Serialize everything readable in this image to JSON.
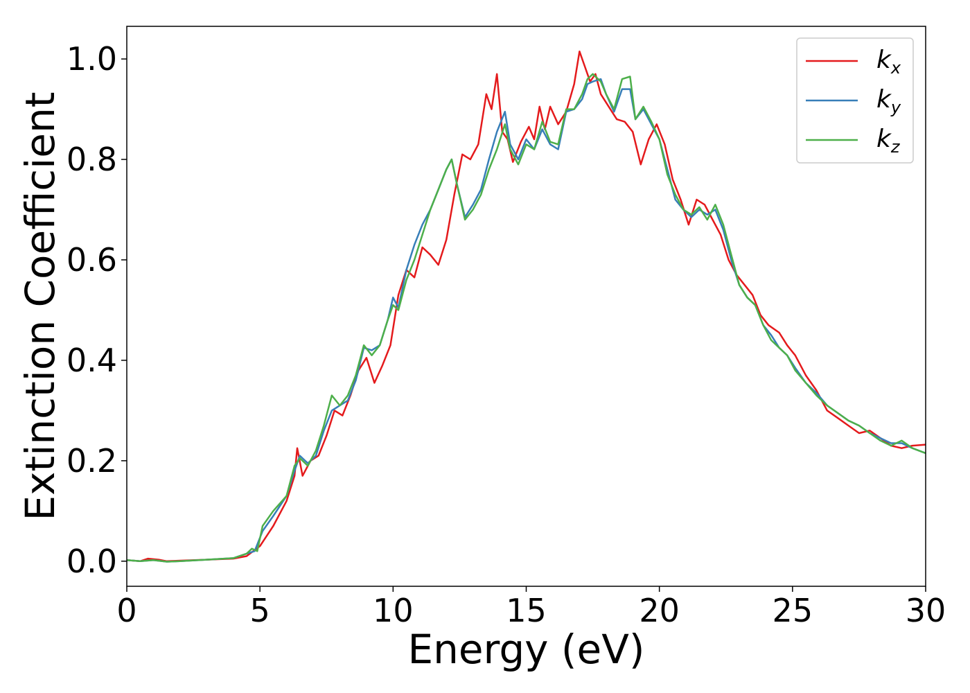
{
  "chart_data": {
    "type": "line",
    "xlabel": "Energy (eV)",
    "ylabel": "Extinction Coefficient",
    "xlim": [
      0,
      30
    ],
    "ylim": [
      -0.05,
      1.065
    ],
    "xticks": [
      "0",
      "5",
      "10",
      "15",
      "20",
      "25",
      "30"
    ],
    "yticks": [
      "0.0",
      "0.2",
      "0.4",
      "0.6",
      "0.8",
      "1.0"
    ],
    "legend_position": "top-right",
    "grid": false,
    "series": [
      {
        "name": "k",
        "subscript": "x",
        "color": "#e41a1c",
        "points": [
          [
            0,
            0.002
          ],
          [
            0.5,
            0.0
          ],
          [
            0.8,
            0.005
          ],
          [
            1.2,
            0.003
          ],
          [
            1.5,
            0.0
          ],
          [
            2,
            0.001
          ],
          [
            3,
            0.003
          ],
          [
            4,
            0.005
          ],
          [
            4.5,
            0.01
          ],
          [
            5,
            0.03
          ],
          [
            5.5,
            0.07
          ],
          [
            6,
            0.12
          ],
          [
            6.3,
            0.17
          ],
          [
            6.4,
            0.225
          ],
          [
            6.6,
            0.17
          ],
          [
            6.9,
            0.2
          ],
          [
            7.2,
            0.21
          ],
          [
            7.5,
            0.25
          ],
          [
            7.8,
            0.3
          ],
          [
            8.1,
            0.29
          ],
          [
            8.4,
            0.33
          ],
          [
            8.7,
            0.38
          ],
          [
            9.0,
            0.405
          ],
          [
            9.3,
            0.355
          ],
          [
            9.6,
            0.39
          ],
          [
            9.9,
            0.43
          ],
          [
            10.2,
            0.53
          ],
          [
            10.5,
            0.58
          ],
          [
            10.8,
            0.565
          ],
          [
            11.1,
            0.625
          ],
          [
            11.4,
            0.61
          ],
          [
            11.7,
            0.59
          ],
          [
            12.0,
            0.64
          ],
          [
            12.3,
            0.73
          ],
          [
            12.6,
            0.81
          ],
          [
            12.9,
            0.8
          ],
          [
            13.2,
            0.83
          ],
          [
            13.5,
            0.93
          ],
          [
            13.7,
            0.9
          ],
          [
            13.9,
            0.97
          ],
          [
            14.1,
            0.855
          ],
          [
            14.3,
            0.84
          ],
          [
            14.5,
            0.795
          ],
          [
            14.8,
            0.835
          ],
          [
            15.1,
            0.865
          ],
          [
            15.3,
            0.84
          ],
          [
            15.5,
            0.905
          ],
          [
            15.7,
            0.86
          ],
          [
            15.9,
            0.905
          ],
          [
            16.2,
            0.87
          ],
          [
            16.5,
            0.895
          ],
          [
            16.8,
            0.95
          ],
          [
            17.0,
            1.015
          ],
          [
            17.2,
            0.985
          ],
          [
            17.4,
            0.955
          ],
          [
            17.6,
            0.97
          ],
          [
            17.8,
            0.93
          ],
          [
            18.1,
            0.905
          ],
          [
            18.4,
            0.88
          ],
          [
            18.7,
            0.875
          ],
          [
            19.0,
            0.855
          ],
          [
            19.3,
            0.79
          ],
          [
            19.6,
            0.84
          ],
          [
            19.9,
            0.87
          ],
          [
            20.2,
            0.83
          ],
          [
            20.5,
            0.76
          ],
          [
            20.8,
            0.72
          ],
          [
            21.1,
            0.67
          ],
          [
            21.4,
            0.72
          ],
          [
            21.7,
            0.71
          ],
          [
            22.0,
            0.68
          ],
          [
            22.3,
            0.65
          ],
          [
            22.6,
            0.6
          ],
          [
            22.9,
            0.57
          ],
          [
            23.2,
            0.55
          ],
          [
            23.5,
            0.53
          ],
          [
            23.8,
            0.49
          ],
          [
            24.1,
            0.47
          ],
          [
            24.5,
            0.455
          ],
          [
            24.8,
            0.43
          ],
          [
            25.1,
            0.41
          ],
          [
            25.5,
            0.37
          ],
          [
            25.9,
            0.34
          ],
          [
            26.3,
            0.3
          ],
          [
            26.7,
            0.285
          ],
          [
            27.1,
            0.27
          ],
          [
            27.5,
            0.255
          ],
          [
            27.9,
            0.26
          ],
          [
            28.3,
            0.245
          ],
          [
            28.7,
            0.23
          ],
          [
            29.1,
            0.225
          ],
          [
            29.5,
            0.23
          ],
          [
            30,
            0.232
          ]
        ]
      },
      {
        "name": "k",
        "subscript": "y",
        "color": "#377eb8",
        "points": [
          [
            0,
            0.002
          ],
          [
            0.5,
            0.0
          ],
          [
            1,
            0.002
          ],
          [
            1.5,
            -0.001
          ],
          [
            2,
            0.0
          ],
          [
            3,
            0.003
          ],
          [
            4,
            0.006
          ],
          [
            4.5,
            0.015
          ],
          [
            4.8,
            0.02
          ],
          [
            5.1,
            0.06
          ],
          [
            5.5,
            0.09
          ],
          [
            6,
            0.13
          ],
          [
            6.3,
            0.18
          ],
          [
            6.5,
            0.21
          ],
          [
            6.8,
            0.195
          ],
          [
            7.1,
            0.21
          ],
          [
            7.4,
            0.26
          ],
          [
            7.7,
            0.3
          ],
          [
            8.0,
            0.31
          ],
          [
            8.3,
            0.32
          ],
          [
            8.6,
            0.36
          ],
          [
            8.9,
            0.425
          ],
          [
            9.2,
            0.42
          ],
          [
            9.5,
            0.43
          ],
          [
            9.8,
            0.48
          ],
          [
            10.0,
            0.525
          ],
          [
            10.2,
            0.505
          ],
          [
            10.5,
            0.58
          ],
          [
            10.8,
            0.63
          ],
          [
            11.1,
            0.67
          ],
          [
            11.4,
            0.7
          ],
          [
            11.7,
            0.74
          ],
          [
            12.0,
            0.78
          ],
          [
            12.2,
            0.8
          ],
          [
            12.4,
            0.75
          ],
          [
            12.7,
            0.685
          ],
          [
            13.0,
            0.71
          ],
          [
            13.3,
            0.74
          ],
          [
            13.6,
            0.8
          ],
          [
            13.9,
            0.855
          ],
          [
            14.2,
            0.895
          ],
          [
            14.4,
            0.83
          ],
          [
            14.7,
            0.8
          ],
          [
            15.0,
            0.84
          ],
          [
            15.3,
            0.82
          ],
          [
            15.6,
            0.86
          ],
          [
            15.9,
            0.83
          ],
          [
            16.2,
            0.82
          ],
          [
            16.5,
            0.895
          ],
          [
            16.8,
            0.9
          ],
          [
            17.1,
            0.92
          ],
          [
            17.3,
            0.95
          ],
          [
            17.5,
            0.955
          ],
          [
            17.8,
            0.96
          ],
          [
            18.0,
            0.93
          ],
          [
            18.3,
            0.895
          ],
          [
            18.6,
            0.94
          ],
          [
            18.9,
            0.94
          ],
          [
            19.1,
            0.88
          ],
          [
            19.4,
            0.9
          ],
          [
            19.7,
            0.87
          ],
          [
            20.0,
            0.84
          ],
          [
            20.3,
            0.78
          ],
          [
            20.6,
            0.72
          ],
          [
            20.9,
            0.7
          ],
          [
            21.2,
            0.685
          ],
          [
            21.5,
            0.7
          ],
          [
            21.8,
            0.69
          ],
          [
            22.1,
            0.7
          ],
          [
            22.4,
            0.66
          ],
          [
            22.7,
            0.6
          ],
          [
            23.0,
            0.55
          ],
          [
            23.3,
            0.525
          ],
          [
            23.6,
            0.51
          ],
          [
            23.9,
            0.47
          ],
          [
            24.2,
            0.45
          ],
          [
            24.5,
            0.425
          ],
          [
            24.8,
            0.41
          ],
          [
            25.1,
            0.385
          ],
          [
            25.5,
            0.355
          ],
          [
            25.9,
            0.335
          ],
          [
            26.3,
            0.31
          ],
          [
            26.7,
            0.295
          ],
          [
            27.1,
            0.28
          ],
          [
            27.5,
            0.27
          ],
          [
            27.9,
            0.255
          ],
          [
            28.3,
            0.245
          ],
          [
            28.7,
            0.235
          ],
          [
            29.1,
            0.235
          ],
          [
            29.5,
            0.225
          ],
          [
            30,
            0.215
          ]
        ]
      },
      {
        "name": "k",
        "subscript": "z",
        "color": "#4daf4a",
        "points": [
          [
            0,
            0.002
          ],
          [
            0.5,
            0.0
          ],
          [
            1,
            0.002
          ],
          [
            1.5,
            -0.001
          ],
          [
            2,
            0.0
          ],
          [
            3,
            0.003
          ],
          [
            4,
            0.006
          ],
          [
            4.5,
            0.015
          ],
          [
            4.7,
            0.025
          ],
          [
            4.9,
            0.02
          ],
          [
            5.1,
            0.07
          ],
          [
            5.5,
            0.1
          ],
          [
            6,
            0.13
          ],
          [
            6.3,
            0.19
          ],
          [
            6.5,
            0.205
          ],
          [
            6.8,
            0.19
          ],
          [
            7.1,
            0.22
          ],
          [
            7.4,
            0.27
          ],
          [
            7.7,
            0.33
          ],
          [
            8.0,
            0.31
          ],
          [
            8.3,
            0.33
          ],
          [
            8.6,
            0.37
          ],
          [
            8.9,
            0.43
          ],
          [
            9.2,
            0.41
          ],
          [
            9.5,
            0.43
          ],
          [
            9.8,
            0.48
          ],
          [
            10.0,
            0.51
          ],
          [
            10.2,
            0.5
          ],
          [
            10.5,
            0.56
          ],
          [
            10.8,
            0.6
          ],
          [
            11.1,
            0.65
          ],
          [
            11.4,
            0.7
          ],
          [
            11.7,
            0.74
          ],
          [
            12.0,
            0.78
          ],
          [
            12.2,
            0.8
          ],
          [
            12.4,
            0.75
          ],
          [
            12.7,
            0.68
          ],
          [
            13.0,
            0.7
          ],
          [
            13.3,
            0.73
          ],
          [
            13.6,
            0.78
          ],
          [
            13.9,
            0.82
          ],
          [
            14.2,
            0.87
          ],
          [
            14.4,
            0.82
          ],
          [
            14.7,
            0.79
          ],
          [
            15.0,
            0.83
          ],
          [
            15.3,
            0.82
          ],
          [
            15.6,
            0.875
          ],
          [
            15.9,
            0.835
          ],
          [
            16.2,
            0.83
          ],
          [
            16.5,
            0.9
          ],
          [
            16.8,
            0.9
          ],
          [
            17.1,
            0.93
          ],
          [
            17.3,
            0.96
          ],
          [
            17.5,
            0.97
          ],
          [
            17.8,
            0.955
          ],
          [
            18.0,
            0.93
          ],
          [
            18.3,
            0.9
          ],
          [
            18.6,
            0.96
          ],
          [
            18.9,
            0.965
          ],
          [
            19.1,
            0.88
          ],
          [
            19.4,
            0.905
          ],
          [
            19.7,
            0.875
          ],
          [
            20.0,
            0.84
          ],
          [
            20.3,
            0.77
          ],
          [
            20.6,
            0.73
          ],
          [
            20.9,
            0.7
          ],
          [
            21.2,
            0.69
          ],
          [
            21.5,
            0.705
          ],
          [
            21.8,
            0.68
          ],
          [
            22.1,
            0.71
          ],
          [
            22.4,
            0.67
          ],
          [
            22.7,
            0.61
          ],
          [
            23.0,
            0.55
          ],
          [
            23.3,
            0.525
          ],
          [
            23.6,
            0.51
          ],
          [
            23.9,
            0.47
          ],
          [
            24.2,
            0.44
          ],
          [
            24.5,
            0.425
          ],
          [
            24.8,
            0.41
          ],
          [
            25.1,
            0.38
          ],
          [
            25.5,
            0.355
          ],
          [
            25.9,
            0.33
          ],
          [
            26.3,
            0.31
          ],
          [
            26.7,
            0.295
          ],
          [
            27.1,
            0.28
          ],
          [
            27.5,
            0.27
          ],
          [
            27.9,
            0.255
          ],
          [
            28.3,
            0.24
          ],
          [
            28.7,
            0.23
          ],
          [
            29.1,
            0.24
          ],
          [
            29.5,
            0.225
          ],
          [
            30,
            0.215
          ]
        ]
      }
    ]
  }
}
